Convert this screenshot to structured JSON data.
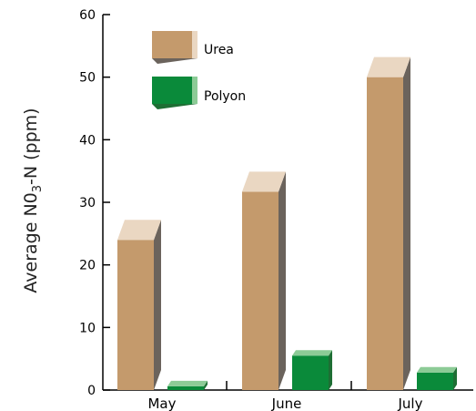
{
  "chart_data": {
    "type": "bar",
    "categories": [
      "May",
      "June",
      "July"
    ],
    "series": [
      {
        "name": "Urea",
        "values": [
          24,
          31.7,
          50
        ]
      },
      {
        "name": "Polyon",
        "values": [
          0.6,
          5.5,
          2.8
        ]
      }
    ],
    "ylabel": "Average N0",
    "ylabel_sub": "3",
    "ylabel_suffix": "-N (ppm)",
    "ylim": [
      0,
      60
    ],
    "yticks": [
      "0",
      "10",
      "20",
      "30",
      "40",
      "50",
      "60"
    ],
    "grid": false,
    "legend_position": "top-left"
  },
  "colors": {
    "urea_front": "#C49A6C",
    "urea_top": "#EAD7C2",
    "urea_side": "#6B635C",
    "polyon_front": "#0A8A3A",
    "polyon_top": "#8CCB96",
    "polyon_side": "#1E6E34"
  }
}
